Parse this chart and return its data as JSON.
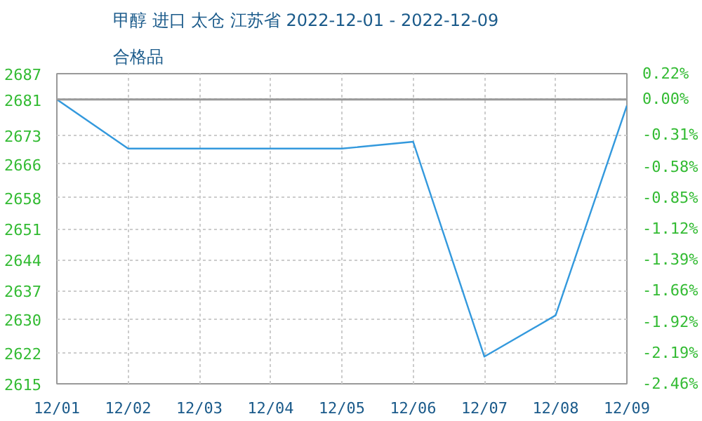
{
  "chart_data": {
    "type": "line",
    "title": "甲醇 进口 太仓 江苏省 2022-12-01 - 2022-12-09",
    "subtitle": "合格品",
    "categories": [
      "12/01",
      "12/02",
      "12/03",
      "12/04",
      "12/05",
      "12/06",
      "12/07",
      "12/08",
      "12/09"
    ],
    "series": [
      {
        "color": "#3399dd",
        "values": [
          2681,
          2669.6,
          2669.6,
          2669.6,
          2669.6,
          2671.2,
          2621.3,
          2630.9,
          2679.6
        ]
      }
    ],
    "ylim": [
      2615,
      2687
    ],
    "yticks": [
      2615,
      {
        "value": 2622.2,
        "label": "2622"
      },
      2630,
      {
        "value": 2636.6,
        "label": "2637"
      },
      {
        "value": 2643.8,
        "label": "2644"
      },
      2651,
      {
        "value": 2658.2,
        "label": "2658"
      },
      2666,
      {
        "value": 2672.6,
        "label": "2673"
      },
      2681,
      2687
    ],
    "y2lim": [
      -2.46,
      0.22
    ],
    "y2ticks": [
      {
        "value": -2.46,
        "label": "-2.46%"
      },
      {
        "value": -2.192,
        "label": "-2.19%"
      },
      {
        "value": -1.924,
        "label": "-1.92%"
      },
      {
        "value": -1.656,
        "label": "-1.66%"
      },
      {
        "value": -1.388,
        "label": "-1.39%"
      },
      {
        "value": -1.12,
        "label": "-1.12%"
      },
      {
        "value": -0.852,
        "label": "-0.85%"
      },
      {
        "value": -0.584,
        "label": "-0.58%"
      },
      {
        "value": -0.31,
        "label": "-0.31%"
      },
      {
        "value": 0,
        "label": "0.00%"
      },
      {
        "value": 0.22,
        "label": "0.22%"
      }
    ],
    "ref_lines": [
      {
        "axis": "y",
        "value": 2681,
        "color": "#999999",
        "line_style": "solid"
      }
    ],
    "grid": true,
    "marker": "none",
    "line_style": "solid"
  }
}
